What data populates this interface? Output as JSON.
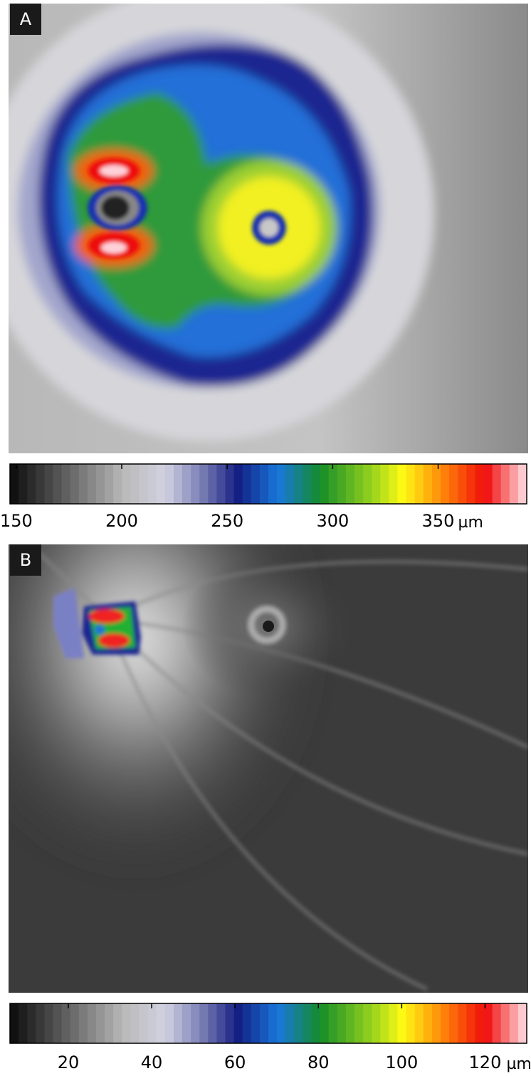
{
  "panels": [
    {
      "label": "A",
      "colorbar": {
        "lim": [
          147,
          392
        ],
        "ticks": [
          150,
          200,
          250,
          300,
          350
        ],
        "unit": "µm"
      }
    },
    {
      "label": "B",
      "colorbar": {
        "lim": [
          6,
          130
        ],
        "ticks": [
          20,
          40,
          60,
          80,
          100,
          120
        ],
        "unit": "µm"
      }
    }
  ]
}
